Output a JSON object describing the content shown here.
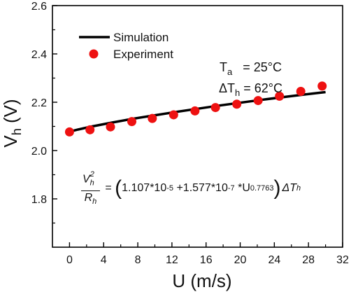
{
  "chart_data": {
    "type": "line",
    "xlabel": "U (m/s)",
    "ylabel": "V_h (V)",
    "ylabel_parts": {
      "main": "V",
      "sub": "h",
      "unit": " (V)"
    },
    "xlim": [
      -2,
      32
    ],
    "ylim": [
      1.6,
      2.6
    ],
    "x_ticks": [
      0,
      4,
      8,
      12,
      16,
      20,
      24,
      28,
      32
    ],
    "y_ticks": [
      1.8,
      2.0,
      2.2,
      2.4,
      2.6
    ],
    "x_tick_labels": [
      "0",
      "4",
      "8",
      "12",
      "16",
      "20",
      "24",
      "28",
      "32"
    ],
    "y_tick_labels": [
      "1.8",
      "2.0",
      "2.2",
      "2.4",
      "2.6"
    ],
    "grid": false,
    "legend_position": "top-left",
    "series": [
      {
        "name": "Simulation",
        "kind": "line",
        "color": "#000000",
        "x": [
          0,
          1,
          2.5,
          5,
          7.5,
          10,
          12.5,
          15,
          17.5,
          20,
          22.5,
          25,
          27.5,
          30
        ],
        "y": [
          2.078,
          2.087,
          2.099,
          2.116,
          2.132,
          2.146,
          2.16,
          2.173,
          2.186,
          2.198,
          2.21,
          2.221,
          2.232,
          2.242
        ]
      },
      {
        "name": "Experiment",
        "kind": "scatter",
        "color": "#ee1111",
        "x": [
          0,
          2.4,
          4.8,
          7.3,
          9.7,
          12.2,
          14.7,
          17.1,
          19.6,
          22.1,
          24.6,
          27.1,
          29.6
        ],
        "y": [
          2.077,
          2.086,
          2.098,
          2.12,
          2.133,
          2.148,
          2.164,
          2.178,
          2.192,
          2.207,
          2.225,
          2.245,
          2.267
        ]
      }
    ],
    "annotations": {
      "ta": {
        "main": "T",
        "sub": "a",
        "rest": "   = 25°C"
      },
      "dth": {
        "main": "ΔT",
        "sub": "h",
        "rest": " = 62°C"
      }
    },
    "formula": {
      "num_main": "V",
      "num_sub": "h",
      "num_sup": "2",
      "den_main": "R",
      "den_sub": "h",
      "eq": " = ",
      "lparen": "(",
      "term1": "1.107*10",
      "exp1": "-5",
      "term2": " +1.577*10",
      "exp2": "-7",
      "term3": " *U",
      "exp3": "0.7763",
      "rparen": ")",
      "tail_main": "ΔT",
      "tail_sub": "h"
    }
  }
}
